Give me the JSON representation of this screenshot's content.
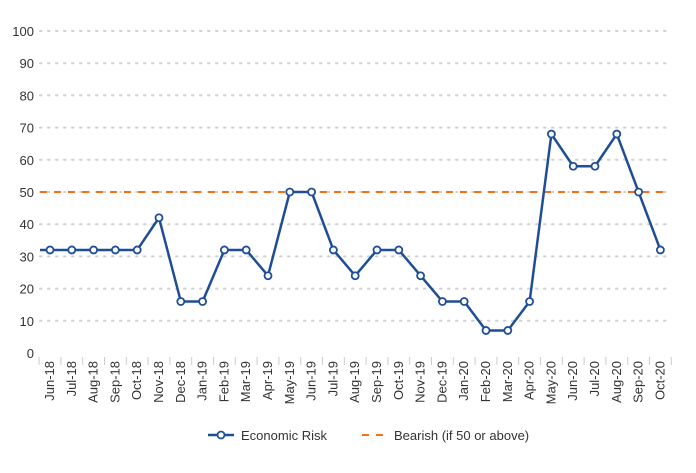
{
  "chart_data": {
    "type": "line",
    "categories": [
      "Jun-18",
      "Jul-18",
      "Aug-18",
      "Sep-18",
      "Oct-18",
      "Nov-18",
      "Dec-18",
      "Jan-19",
      "Feb-19",
      "Mar-19",
      "Apr-19",
      "May-19",
      "Jun-19",
      "Jul-19",
      "Aug-19",
      "Sep-19",
      "Oct-19",
      "Nov-19",
      "Dec-19",
      "Jan-20",
      "Feb-20",
      "Mar-20",
      "Apr-20",
      "May-20",
      "Jun-20",
      "Jul-20",
      "Aug-20",
      "Sep-20",
      "Oct-20"
    ],
    "series": [
      {
        "name": "Economic Risk",
        "color": "#1f4e96",
        "values": [
          32,
          32,
          32,
          32,
          32,
          42,
          16,
          16,
          32,
          32,
          24,
          50,
          50,
          32,
          24,
          32,
          32,
          24,
          16,
          16,
          7,
          7,
          16,
          68,
          58,
          58,
          68,
          50,
          32
        ]
      }
    ],
    "reference_line": {
      "name": "Bearish (if 50 or above)",
      "value": 50,
      "color": "#f07020"
    },
    "ylim": [
      0,
      100
    ],
    "yticks": [
      0,
      10,
      20,
      30,
      40,
      50,
      60,
      70,
      80,
      90,
      100
    ],
    "grid": true,
    "legend": "bottom"
  }
}
